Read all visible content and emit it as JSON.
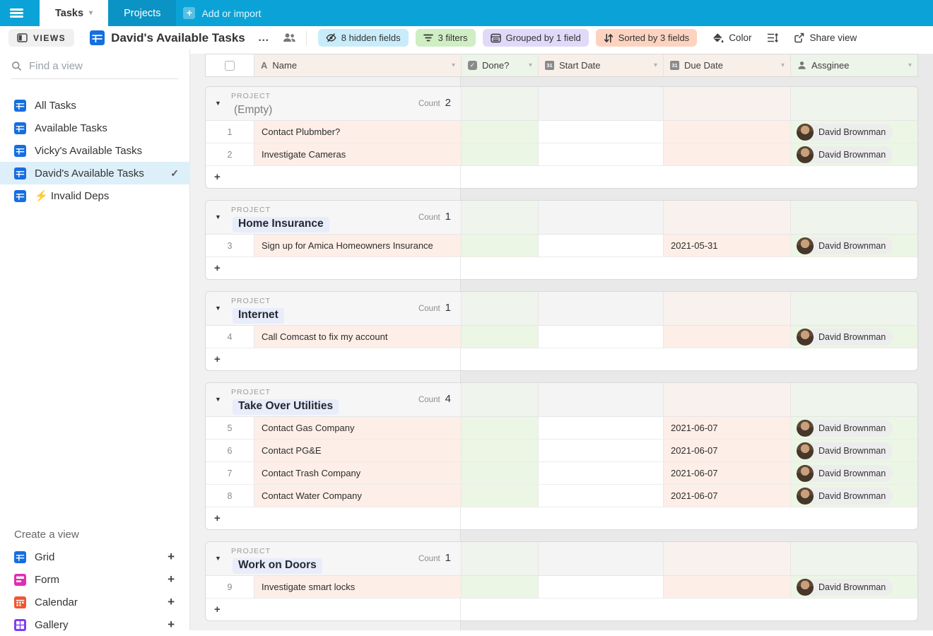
{
  "topbar": {
    "tabs": [
      {
        "label": "Tasks",
        "active": true,
        "has_caret": true
      },
      {
        "label": "Projects",
        "active": false,
        "has_caret": false
      }
    ],
    "add_label": "Add or import"
  },
  "toolbar": {
    "views_label": "VIEWS",
    "title": "David's Available Tasks",
    "menu_dots": "…",
    "pills": [
      {
        "label": "8 hidden fields",
        "icon": "hidden-fields-icon",
        "bg": "#c9ecfa"
      },
      {
        "label": "3 filters",
        "icon": "filter-icon",
        "bg": "#cfeec3"
      },
      {
        "label": "Grouped by 1 field",
        "icon": "grouped-icon",
        "bg": "#e1d9f9"
      },
      {
        "label": "Sorted by 3 fields",
        "icon": "sorted-icon",
        "bg": "#fdd3c0"
      }
    ],
    "color_label": "Color",
    "share_label": "Share view"
  },
  "sidebar": {
    "search_placeholder": "Find a view",
    "views": [
      {
        "label": "All Tasks",
        "selected": false,
        "emoji": ""
      },
      {
        "label": "Available Tasks",
        "selected": false,
        "emoji": ""
      },
      {
        "label": "Vicky's Available Tasks",
        "selected": false,
        "emoji": ""
      },
      {
        "label": "David's Available Tasks",
        "selected": true,
        "emoji": ""
      },
      {
        "label": "Invalid Deps",
        "selected": false,
        "emoji": "⚡"
      }
    ],
    "create": {
      "heading": "Create a view",
      "items": [
        {
          "label": "Grid",
          "type": "grid",
          "color": "#166ee1"
        },
        {
          "label": "Form",
          "type": "form",
          "color": "#e12db4"
        },
        {
          "label": "Calendar",
          "type": "calendar",
          "color": "#ef5630"
        },
        {
          "label": "Gallery",
          "type": "gallery",
          "color": "#7e3ff2"
        }
      ]
    }
  },
  "table": {
    "group_field_label": "PROJECT",
    "count_label": "Count",
    "add_row_label": "+",
    "columns": [
      {
        "label": "Name",
        "type": "text",
        "tint": "pink"
      },
      {
        "label": "Done?",
        "type": "checkbox",
        "tint": "green"
      },
      {
        "label": "Start Date",
        "type": "calendar",
        "tint": "pink"
      },
      {
        "label": "Due Date",
        "type": "calendar",
        "tint": "pink"
      },
      {
        "label": "Assginee",
        "type": "person",
        "tint": "green"
      }
    ],
    "groups": [
      {
        "value": "(Empty)",
        "empty": true,
        "count": 2,
        "rows": [
          {
            "num": 1,
            "name": "Contact Plubmber?",
            "start": "",
            "due": "",
            "assignee": "David Brownman"
          },
          {
            "num": 2,
            "name": "Investigate Cameras",
            "start": "",
            "due": "",
            "assignee": "David Brownman"
          }
        ]
      },
      {
        "value": "Home Insurance",
        "empty": false,
        "count": 1,
        "rows": [
          {
            "num": 3,
            "name": "Sign up for Amica Homeowners Insurance",
            "start": "",
            "due": "2021-05-31",
            "assignee": "David Brownman"
          }
        ]
      },
      {
        "value": "Internet",
        "empty": false,
        "count": 1,
        "rows": [
          {
            "num": 4,
            "name": "Call Comcast to fix my account",
            "start": "",
            "due": "",
            "assignee": "David Brownman"
          }
        ]
      },
      {
        "value": "Take Over Utilities",
        "empty": false,
        "count": 4,
        "rows": [
          {
            "num": 5,
            "name": "Contact Gas Company",
            "start": "",
            "due": "2021-06-07",
            "assignee": "David Brownman"
          },
          {
            "num": 6,
            "name": "Contact PG&E",
            "start": "",
            "due": "2021-06-07",
            "assignee": "David Brownman"
          },
          {
            "num": 7,
            "name": "Contact Trash Company",
            "start": "",
            "due": "2021-06-07",
            "assignee": "David Brownman"
          },
          {
            "num": 8,
            "name": "Contact Water Company",
            "start": "",
            "due": "2021-06-07",
            "assignee": "David Brownman"
          }
        ]
      },
      {
        "value": "Work on Doors",
        "empty": false,
        "count": 1,
        "rows": [
          {
            "num": 9,
            "name": "Investigate smart locks",
            "start": "",
            "due": "",
            "assignee": "David Brownman"
          }
        ]
      }
    ]
  },
  "colors": {
    "topbar_bg": "#0ba3d7",
    "topbar_tab_inactive": "#0a93c4",
    "cell_pink": "#fdeee7",
    "cell_green": "#ebf6e4",
    "header_pink": "#f8efe9",
    "header_green": "#edf4e9",
    "ghead_left": "#f6f6f6",
    "ghead_green": "#eff4ec",
    "ghead_gray": "#f4f4f4",
    "ghead_pink": "#f8f1ee",
    "selected_view_bg": "#ddeff9",
    "project_chip_bg": "#e8ecfb"
  }
}
